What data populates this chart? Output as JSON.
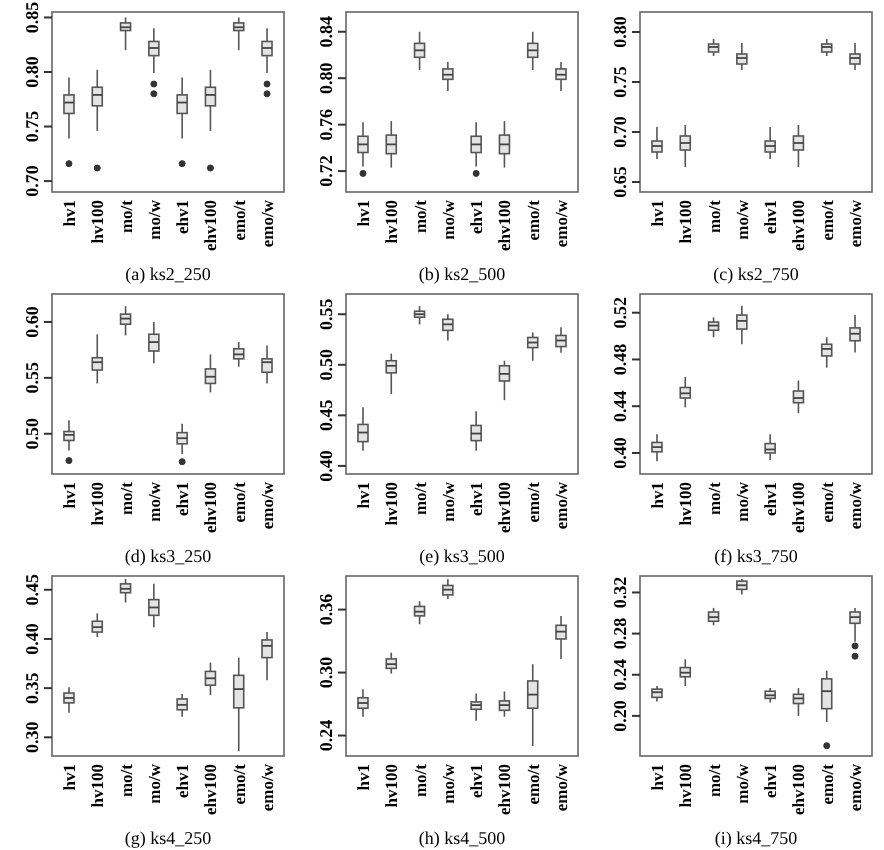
{
  "chart_data": [
    {
      "type": "box",
      "title": "(a) ks2_250",
      "categories": [
        "hv1",
        "hv100",
        "mo/t",
        "mo/w",
        "ehv1",
        "ehv100",
        "emo/t",
        "emo/w"
      ],
      "ylim": [
        0.69,
        0.855
      ],
      "yticks": [
        {
          "value": 0.7,
          "label": "0.70"
        },
        {
          "value": 0.75,
          "label": "0.75"
        },
        {
          "value": 0.8,
          "label": "0.80"
        },
        {
          "value": 0.85,
          "label": "0.85"
        }
      ],
      "boxes": [
        {
          "low": 0.739,
          "q1": 0.762,
          "median": 0.772,
          "q3": 0.779,
          "high": 0.795,
          "outliers": [
            0.716
          ]
        },
        {
          "low": 0.746,
          "q1": 0.769,
          "median": 0.779,
          "q3": 0.786,
          "high": 0.802,
          "outliers": [
            0.712
          ]
        },
        {
          "low": 0.82,
          "q1": 0.838,
          "median": 0.841,
          "q3": 0.845,
          "high": 0.85
        },
        {
          "low": 0.799,
          "q1": 0.815,
          "median": 0.822,
          "q3": 0.828,
          "high": 0.84,
          "outliers": [
            0.789,
            0.78
          ]
        },
        {
          "low": 0.739,
          "q1": 0.762,
          "median": 0.772,
          "q3": 0.779,
          "high": 0.795,
          "outliers": [
            0.716
          ]
        },
        {
          "low": 0.746,
          "q1": 0.769,
          "median": 0.779,
          "q3": 0.786,
          "high": 0.802,
          "outliers": [
            0.712
          ]
        },
        {
          "low": 0.82,
          "q1": 0.838,
          "median": 0.841,
          "q3": 0.845,
          "high": 0.85
        },
        {
          "low": 0.799,
          "q1": 0.815,
          "median": 0.822,
          "q3": 0.828,
          "high": 0.84,
          "outliers": [
            0.789,
            0.78
          ]
        }
      ]
    },
    {
      "type": "box",
      "title": "(b) ks2_500",
      "categories": [
        "hv1",
        "hv100",
        "mo/t",
        "mo/w",
        "ehv1",
        "ehv100",
        "emo/t",
        "emo/w"
      ],
      "ylim": [
        0.702,
        0.857
      ],
      "yticks": [
        0.72,
        0.76,
        {
          "value": 0.8,
          "label": "0.80"
        },
        0.84
      ],
      "boxes": [
        {
          "low": 0.724,
          "q1": 0.736,
          "median": 0.743,
          "q3": 0.75,
          "high": 0.762,
          "outliers": [
            0.718
          ]
        },
        {
          "low": 0.723,
          "q1": 0.735,
          "median": 0.743,
          "q3": 0.751,
          "high": 0.763
        },
        {
          "low": 0.807,
          "q1": 0.818,
          "median": 0.824,
          "q3": 0.83,
          "high": 0.84
        },
        {
          "low": 0.789,
          "q1": 0.799,
          "median": 0.803,
          "q3": 0.808,
          "high": 0.814
        },
        {
          "low": 0.724,
          "q1": 0.736,
          "median": 0.743,
          "q3": 0.75,
          "high": 0.762,
          "outliers": [
            0.718
          ]
        },
        {
          "low": 0.723,
          "q1": 0.735,
          "median": 0.743,
          "q3": 0.751,
          "high": 0.763
        },
        {
          "low": 0.807,
          "q1": 0.818,
          "median": 0.824,
          "q3": 0.83,
          "high": 0.84
        },
        {
          "low": 0.789,
          "q1": 0.799,
          "median": 0.803,
          "q3": 0.808,
          "high": 0.814
        }
      ]
    },
    {
      "type": "box",
      "title": "(c) ks2_750",
      "categories": [
        "hv1",
        "hv100",
        "mo/t",
        "mo/w",
        "ehv1",
        "ehv100",
        "emo/t",
        "emo/w"
      ],
      "ylim": [
        0.64,
        0.82
      ],
      "yticks": [
        0.65,
        {
          "value": 0.7,
          "label": "0.70"
        },
        0.75,
        {
          "value": 0.8,
          "label": "0.80"
        }
      ],
      "boxes": [
        {
          "low": 0.673,
          "q1": 0.68,
          "median": 0.686,
          "q3": 0.691,
          "high": 0.705
        },
        {
          "low": 0.665,
          "q1": 0.682,
          "median": 0.689,
          "q3": 0.696,
          "high": 0.707
        },
        {
          "low": 0.776,
          "q1": 0.78,
          "median": 0.785,
          "q3": 0.788,
          "high": 0.793
        },
        {
          "low": 0.762,
          "q1": 0.768,
          "median": 0.774,
          "q3": 0.778,
          "high": 0.789
        },
        {
          "low": 0.673,
          "q1": 0.68,
          "median": 0.686,
          "q3": 0.691,
          "high": 0.705
        },
        {
          "low": 0.665,
          "q1": 0.682,
          "median": 0.689,
          "q3": 0.696,
          "high": 0.707
        },
        {
          "low": 0.776,
          "q1": 0.78,
          "median": 0.785,
          "q3": 0.788,
          "high": 0.793
        },
        {
          "low": 0.762,
          "q1": 0.768,
          "median": 0.774,
          "q3": 0.778,
          "high": 0.789
        }
      ]
    },
    {
      "type": "box",
      "title": "(d) ks3_250",
      "categories": [
        "hv1",
        "hv100",
        "mo/t",
        "mo/w",
        "ehv1",
        "ehv100",
        "emo/t",
        "emo/w"
      ],
      "ylim": [
        0.464,
        0.625
      ],
      "yticks": [
        {
          "value": 0.5,
          "label": "0.50"
        },
        0.55,
        {
          "value": 0.6,
          "label": "0.60"
        }
      ],
      "boxes": [
        {
          "low": 0.485,
          "q1": 0.494,
          "median": 0.499,
          "q3": 0.502,
          "high": 0.512,
          "outliers": [
            0.476
          ]
        },
        {
          "low": 0.545,
          "q1": 0.557,
          "median": 0.564,
          "q3": 0.568,
          "high": 0.589
        },
        {
          "low": 0.588,
          "q1": 0.598,
          "median": 0.603,
          "q3": 0.607,
          "high": 0.614
        },
        {
          "low": 0.563,
          "q1": 0.574,
          "median": 0.582,
          "q3": 0.589,
          "high": 0.6
        },
        {
          "low": 0.482,
          "q1": 0.491,
          "median": 0.496,
          "q3": 0.501,
          "high": 0.509,
          "outliers": [
            0.475
          ]
        },
        {
          "low": 0.537,
          "q1": 0.545,
          "median": 0.551,
          "q3": 0.558,
          "high": 0.571
        },
        {
          "low": 0.56,
          "q1": 0.567,
          "median": 0.571,
          "q3": 0.576,
          "high": 0.582
        },
        {
          "low": 0.545,
          "q1": 0.555,
          "median": 0.564,
          "q3": 0.567,
          "high": 0.579
        }
      ]
    },
    {
      "type": "box",
      "title": "(e) ks3_500",
      "categories": [
        "hv1",
        "hv100",
        "mo/t",
        "mo/w",
        "ehv1",
        "ehv100",
        "emo/t",
        "emo/w"
      ],
      "ylim": [
        0.392,
        0.57
      ],
      "yticks": [
        {
          "value": 0.4,
          "label": "0.40"
        },
        0.45,
        {
          "value": 0.5,
          "label": "0.50"
        },
        0.55
      ],
      "boxes": [
        {
          "low": 0.415,
          "q1": 0.424,
          "median": 0.433,
          "q3": 0.441,
          "high": 0.458
        },
        {
          "low": 0.471,
          "q1": 0.492,
          "median": 0.499,
          "q3": 0.504,
          "high": 0.511
        },
        {
          "low": 0.54,
          "q1": 0.547,
          "median": 0.55,
          "q3": 0.553,
          "high": 0.558
        },
        {
          "low": 0.524,
          "q1": 0.534,
          "median": 0.54,
          "q3": 0.545,
          "high": 0.55
        },
        {
          "low": 0.415,
          "q1": 0.425,
          "median": 0.432,
          "q3": 0.44,
          "high": 0.454
        },
        {
          "low": 0.465,
          "q1": 0.484,
          "median": 0.491,
          "q3": 0.499,
          "high": 0.504
        },
        {
          "low": 0.504,
          "q1": 0.517,
          "median": 0.522,
          "q3": 0.527,
          "high": 0.532
        },
        {
          "low": 0.512,
          "q1": 0.518,
          "median": 0.524,
          "q3": 0.529,
          "high": 0.537
        }
      ]
    },
    {
      "type": "box",
      "title": "(f) ks3_750",
      "categories": [
        "hv1",
        "hv100",
        "mo/t",
        "mo/w",
        "ehv1",
        "ehv100",
        "emo/t",
        "emo/w"
      ],
      "ylim": [
        0.382,
        0.536
      ],
      "yticks": [
        {
          "value": 0.4,
          "label": "0.40"
        },
        0.44,
        0.48,
        0.52
      ],
      "boxes": [
        {
          "low": 0.393,
          "q1": 0.401,
          "median": 0.405,
          "q3": 0.409,
          "high": 0.416
        },
        {
          "low": 0.439,
          "q1": 0.447,
          "median": 0.451,
          "q3": 0.456,
          "high": 0.465
        },
        {
          "low": 0.499,
          "q1": 0.505,
          "median": 0.509,
          "q3": 0.512,
          "high": 0.516
        },
        {
          "low": 0.493,
          "q1": 0.506,
          "median": 0.513,
          "q3": 0.518,
          "high": 0.526
        },
        {
          "low": 0.394,
          "q1": 0.4,
          "median": 0.403,
          "q3": 0.408,
          "high": 0.416
        },
        {
          "low": 0.434,
          "q1": 0.443,
          "median": 0.447,
          "q3": 0.453,
          "high": 0.462
        },
        {
          "low": 0.473,
          "q1": 0.483,
          "median": 0.489,
          "q3": 0.493,
          "high": 0.499
        },
        {
          "low": 0.486,
          "q1": 0.496,
          "median": 0.502,
          "q3": 0.507,
          "high": 0.518
        }
      ]
    },
    {
      "type": "box",
      "title": "(g) ks4_250",
      "categories": [
        "hv1",
        "hv100",
        "mo/t",
        "mo/w",
        "ehv1",
        "ehv100",
        "emo/t",
        "emo/w"
      ],
      "ylim": [
        0.281,
        0.464
      ],
      "yticks": [
        {
          "value": 0.3,
          "label": "0.30"
        },
        0.35,
        {
          "value": 0.4,
          "label": "0.40"
        },
        0.45
      ],
      "boxes": [
        {
          "low": 0.325,
          "q1": 0.335,
          "median": 0.34,
          "q3": 0.345,
          "high": 0.351
        },
        {
          "low": 0.402,
          "q1": 0.407,
          "median": 0.412,
          "q3": 0.418,
          "high": 0.426
        },
        {
          "low": 0.437,
          "q1": 0.447,
          "median": 0.451,
          "q3": 0.456,
          "high": 0.461
        },
        {
          "low": 0.412,
          "q1": 0.424,
          "median": 0.432,
          "q3": 0.44,
          "high": 0.456
        },
        {
          "low": 0.321,
          "q1": 0.328,
          "median": 0.333,
          "q3": 0.339,
          "high": 0.344
        },
        {
          "low": 0.343,
          "q1": 0.353,
          "median": 0.36,
          "q3": 0.367,
          "high": 0.376
        },
        {
          "low": 0.286,
          "q1": 0.33,
          "median": 0.349,
          "q3": 0.363,
          "high": 0.381
        },
        {
          "low": 0.358,
          "q1": 0.381,
          "median": 0.393,
          "q3": 0.399,
          "high": 0.407
        }
      ]
    },
    {
      "type": "box",
      "title": "(h) ks4_500",
      "categories": [
        "hv1",
        "hv100",
        "mo/t",
        "mo/w",
        "ehv1",
        "ehv100",
        "emo/t",
        "emo/w"
      ],
      "ylim": [
        0.2205,
        0.392
      ],
      "yticks": [
        0.24,
        {
          "value": 0.3,
          "label": "0.30"
        },
        0.36
      ],
      "boxes": [
        {
          "low": 0.258,
          "q1": 0.266,
          "median": 0.271,
          "q3": 0.276,
          "high": 0.284
        },
        {
          "low": 0.299,
          "q1": 0.304,
          "median": 0.308,
          "q3": 0.313,
          "high": 0.319
        },
        {
          "low": 0.346,
          "q1": 0.354,
          "median": 0.358,
          "q3": 0.363,
          "high": 0.368
        },
        {
          "low": 0.37,
          "q1": 0.374,
          "median": 0.379,
          "q3": 0.383,
          "high": 0.389
        },
        {
          "low": 0.254,
          "q1": 0.265,
          "median": 0.269,
          "q3": 0.272,
          "high": 0.28
        },
        {
          "low": 0.258,
          "q1": 0.264,
          "median": 0.269,
          "q3": 0.273,
          "high": 0.282
        },
        {
          "low": 0.23,
          "q1": 0.266,
          "median": 0.279,
          "q3": 0.292,
          "high": 0.308
        },
        {
          "low": 0.313,
          "q1": 0.332,
          "median": 0.339,
          "q3": 0.345,
          "high": 0.354
        }
      ]
    },
    {
      "type": "box",
      "title": "(i) ks4_750",
      "categories": [
        "hv1",
        "hv100",
        "mo/t",
        "mo/w",
        "ehv1",
        "ehv100",
        "emo/t",
        "emo/w"
      ],
      "ylim": [
        0.161,
        0.336
      ],
      "yticks": [
        {
          "value": 0.2,
          "label": "0.20"
        },
        0.24,
        0.28,
        0.32
      ],
      "boxes": [
        {
          "low": 0.214,
          "q1": 0.218,
          "median": 0.223,
          "q3": 0.226,
          "high": 0.229
        },
        {
          "low": 0.229,
          "q1": 0.238,
          "median": 0.242,
          "q3": 0.247,
          "high": 0.255
        },
        {
          "low": 0.288,
          "q1": 0.292,
          "median": 0.296,
          "q3": 0.301,
          "high": 0.305
        },
        {
          "low": 0.318,
          "q1": 0.323,
          "median": 0.327,
          "q3": 0.331,
          "high": 0.333
        },
        {
          "low": 0.213,
          "q1": 0.217,
          "median": 0.22,
          "q3": 0.224,
          "high": 0.227
        },
        {
          "low": 0.2,
          "q1": 0.212,
          "median": 0.217,
          "q3": 0.221,
          "high": 0.227
        },
        {
          "low": 0.194,
          "q1": 0.207,
          "median": 0.224,
          "q3": 0.236,
          "high": 0.244,
          "outliers": [
            0.171
          ]
        },
        {
          "low": 0.272,
          "q1": 0.29,
          "median": 0.296,
          "q3": 0.301,
          "high": 0.305,
          "outliers": [
            0.268,
            0.258
          ]
        }
      ]
    }
  ]
}
